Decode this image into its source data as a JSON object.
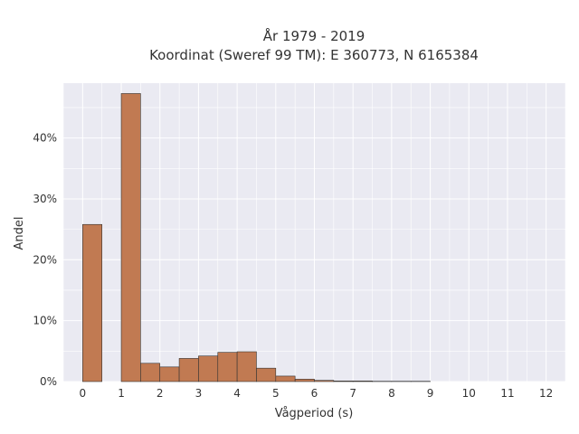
{
  "chart_data": {
    "type": "bar",
    "title_line1": "År 1979 - 2019",
    "title_line2": "Koordinat (Sweref 99 TM): E 360773, N 6165384",
    "xlabel": "Vågperiod (s)",
    "ylabel": "Andel",
    "xlim": [
      -0.5,
      12.5
    ],
    "ylim": [
      0,
      49
    ],
    "bin_width": 0.5,
    "x_ticks": [
      0,
      1,
      2,
      3,
      4,
      5,
      6,
      7,
      8,
      9,
      10,
      11,
      12
    ],
    "x_tick_labels": [
      "0",
      "1",
      "2",
      "3",
      "4",
      "5",
      "6",
      "7",
      "8",
      "9",
      "10",
      "11",
      "12"
    ],
    "y_ticks": [
      0,
      10,
      20,
      30,
      40
    ],
    "y_tick_labels": [
      "0%",
      "10%",
      "20%",
      "30%",
      "40%"
    ],
    "x_bins": [
      0,
      1,
      1.5,
      2,
      2.5,
      3,
      3.5,
      4,
      4.5,
      5,
      5.5,
      6,
      6.5,
      7,
      7.5,
      8,
      8.5
    ],
    "values": [
      25.8,
      47.3,
      3.0,
      2.4,
      3.8,
      4.2,
      4.8,
      4.9,
      2.2,
      0.9,
      0.4,
      0.2,
      0.1,
      0.1,
      0.05,
      0.05,
      0.05
    ],
    "grid": true,
    "bar_color": "#c17a52",
    "bar_edge_color": "#333333",
    "plot_background": "#eaeaf2",
    "grid_color": "#ffffff"
  }
}
